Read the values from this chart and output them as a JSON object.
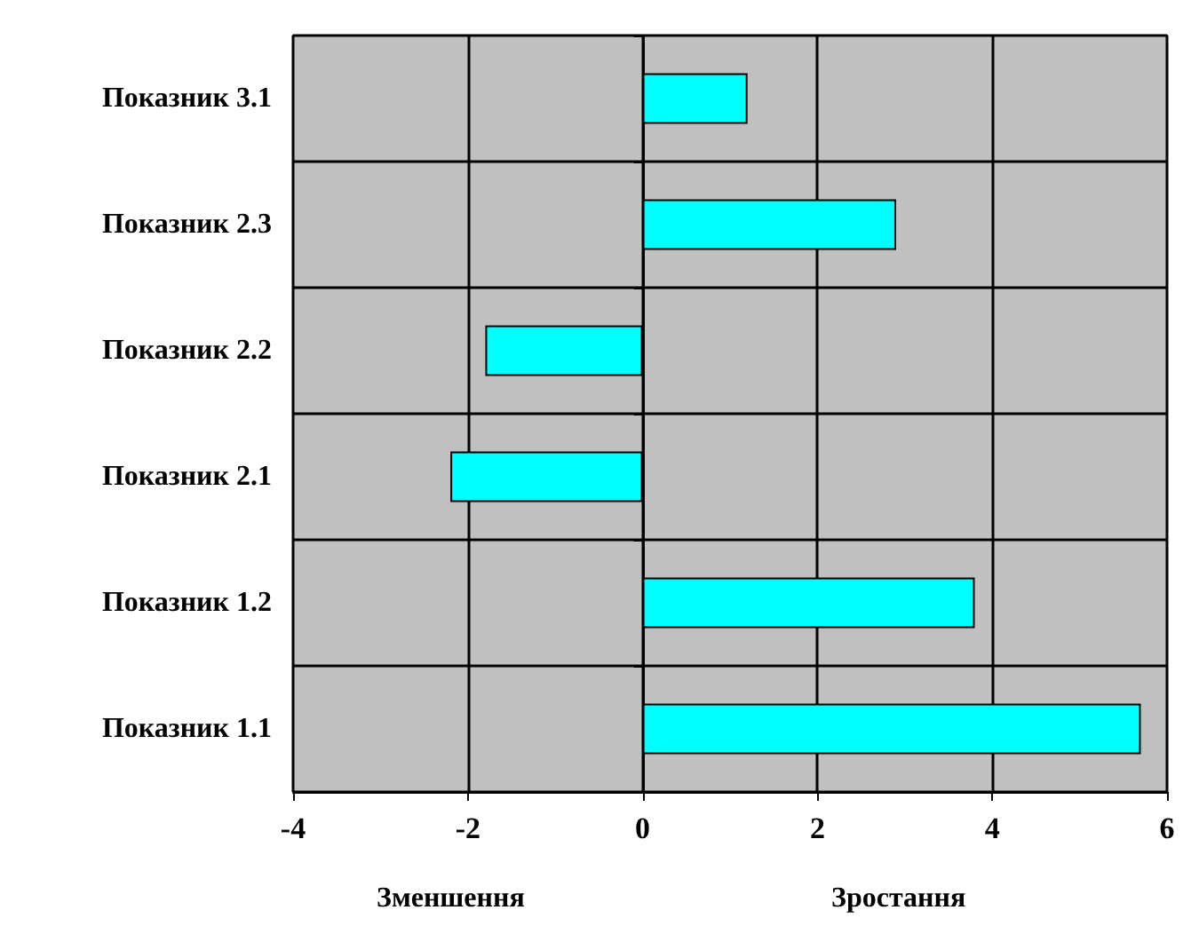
{
  "chart_data": {
    "type": "bar",
    "orientation": "horizontal",
    "categories": [
      "Показник 3.1",
      "Показник 2.3",
      "Показник 2.2",
      "Показник 2.1",
      "Показник 1.2",
      "Показник 1.1"
    ],
    "values": [
      1.2,
      2.9,
      -1.8,
      -2.2,
      3.8,
      5.7
    ],
    "color": "#00ffff",
    "xlim": [
      -4,
      6
    ],
    "xticks": [
      -4,
      -2,
      0,
      2,
      4,
      6
    ],
    "grid": true,
    "annotations": [
      "Зменшення",
      "Зростання"
    ]
  }
}
